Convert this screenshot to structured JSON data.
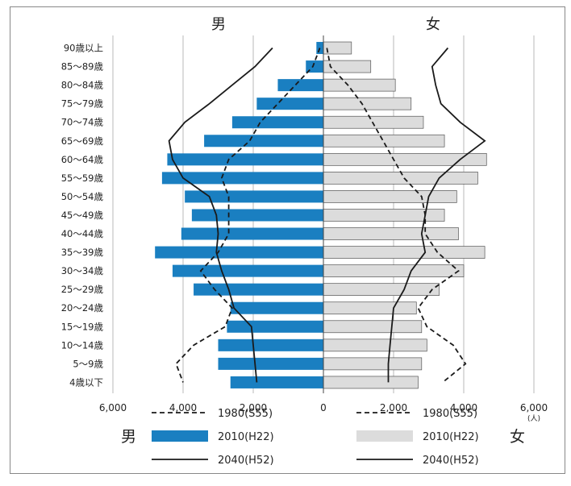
{
  "chart_data": {
    "type": "bar",
    "title": "",
    "headers": {
      "male": "男",
      "female": "女"
    },
    "unit": "(人)",
    "categories": [
      "90歳以上",
      "85〜89歳",
      "80〜84歳",
      "75〜79歳",
      "70〜74歳",
      "65〜69歳",
      "60〜64歳",
      "55〜59歳",
      "50〜54歳",
      "45〜49歳",
      "40〜44歳",
      "35〜39歳",
      "30〜34歳",
      "25〜29歳",
      "20〜24歳",
      "15〜19歳",
      "10〜14歳",
      "5〜9歳",
      "4歳以下"
    ],
    "xlim": [
      -6000,
      6000
    ],
    "xticks": [
      -6000,
      -4000,
      -2000,
      0,
      2000,
      4000,
      6000
    ],
    "xtick_labels": [
      "6,000",
      "4,000",
      "2,000",
      "0",
      "2,000",
      "4,000",
      "6,000"
    ],
    "series": [
      {
        "name": "1980(S55)",
        "sex": "male",
        "style": "dashed",
        "values": [
          100,
          300,
          800,
          1300,
          1800,
          2100,
          2700,
          2900,
          2700,
          2700,
          2700,
          3000,
          3500,
          3100,
          2600,
          2800,
          3700,
          4200,
          4000
        ]
      },
      {
        "name": "2010(H22)",
        "sex": "male",
        "style": "bar",
        "values": [
          200,
          500,
          1300,
          1900,
          2600,
          3400,
          4450,
          4600,
          3950,
          3750,
          4050,
          4800,
          4300,
          3700,
          2650,
          2750,
          3000,
          3000,
          2650
        ]
      },
      {
        "name": "2040(H52)",
        "sex": "male",
        "style": "solid",
        "values": [
          1450,
          1950,
          2600,
          3250,
          3950,
          4400,
          4300,
          4000,
          3250,
          3050,
          3000,
          3050,
          2900,
          2700,
          2550,
          2050,
          2000,
          1950,
          1900
        ]
      },
      {
        "name": "1980(S55)",
        "sex": "female",
        "style": "dashed",
        "values": [
          100,
          200,
          700,
          1100,
          1400,
          1700,
          2000,
          2300,
          2800,
          2900,
          2900,
          3250,
          3850,
          3100,
          2700,
          2950,
          3700,
          4050,
          3400
        ]
      },
      {
        "name": "2010(H22)",
        "sex": "female",
        "style": "bar",
        "values": [
          800,
          1350,
          2050,
          2500,
          2850,
          3450,
          4650,
          4400,
          3800,
          3450,
          3850,
          4600,
          4000,
          3300,
          2650,
          2800,
          2950,
          2800,
          2700
        ]
      },
      {
        "name": "2040(H52)",
        "sex": "female",
        "style": "solid",
        "values": [
          3550,
          3100,
          3200,
          3350,
          3900,
          4600,
          3900,
          3300,
          3000,
          2900,
          2800,
          2900,
          2500,
          2300,
          2000,
          1950,
          1900,
          1850,
          1850
        ]
      }
    ],
    "colors": {
      "male_bar": "#1a7fc1",
      "female_bar": "#dcdcdc",
      "line": "#1a1a1a",
      "grid": "#b8b8b8"
    },
    "legend": {
      "male_label": "男",
      "female_label": "女",
      "items": [
        "1980(S55)",
        "2010(H22)",
        "2040(H52)"
      ]
    },
    "grid": true
  }
}
